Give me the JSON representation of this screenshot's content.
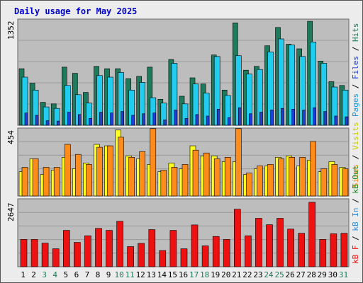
{
  "title": "Daily usage for May 2025",
  "colors": {
    "background": "#ececec",
    "panel": "#bdbdbd",
    "title": "#0000cc",
    "hits": "#1f7a5c",
    "files": "#22ccee",
    "pages": "#1e3fd9",
    "visits": "#ffff22",
    "sites": "#ff8c1a",
    "kbin": "#2f8fd8",
    "kbout": "#1c8a1c",
    "kbf": "#ee1111",
    "weekend_day": "#1f7a5c",
    "weekday_day": "#000000"
  },
  "right_labels": {
    "top": [
      {
        "text": "Pages",
        "color": "#1e9ad9"
      },
      {
        "text": "Files",
        "color": "#1e3fd9"
      },
      {
        "text": "Hits",
        "color": "#1f7a5c"
      }
    ],
    "middle": [
      {
        "text": "Sites",
        "color": "#ff8c1a"
      },
      {
        "text": "Visits",
        "color": "#cccc00"
      }
    ],
    "bottom": [
      {
        "text": "kB F",
        "color": "#ee1111"
      },
      {
        "text": "kB In",
        "color": "#2f8fd8"
      },
      {
        "text": "kB Out",
        "color": "#1c8a1c"
      }
    ]
  },
  "chart_data": [
    {
      "type": "bar",
      "panel": "hits-files-pages",
      "ymax_label": "1352",
      "ylim": [
        0,
        1352
      ],
      "categories": [
        "1",
        "2",
        "3",
        "4",
        "5",
        "6",
        "7",
        "8",
        "9",
        "10",
        "11",
        "12",
        "13",
        "14",
        "15",
        "16",
        "17",
        "18",
        "19",
        "20",
        "21",
        "22",
        "23",
        "24",
        "25",
        "26",
        "27",
        "28",
        "29",
        "30",
        "31"
      ],
      "weekend_days": [
        "3",
        "4",
        "10",
        "11",
        "17",
        "18",
        "24",
        "25",
        "31"
      ],
      "series": [
        {
          "name": "Hits",
          "color": "#1f7a5c",
          "values": [
            740,
            550,
            300,
            280,
            760,
            680,
            430,
            770,
            740,
            740,
            610,
            640,
            760,
            340,
            860,
            380,
            620,
            540,
            920,
            460,
            1340,
            720,
            770,
            1040,
            1280,
            1060,
            1000,
            1360,
            840,
            570,
            520
          ]
        },
        {
          "name": "Files",
          "color": "#22ccee",
          "values": [
            630,
            460,
            240,
            220,
            520,
            400,
            290,
            650,
            630,
            690,
            460,
            560,
            360,
            290,
            810,
            280,
            540,
            420,
            900,
            390,
            910,
            670,
            730,
            960,
            1130,
            1050,
            900,
            1090,
            810,
            500,
            460
          ]
        },
        {
          "name": "Pages",
          "color": "#1e3fd9",
          "values": [
            160,
            130,
            60,
            55,
            170,
            140,
            90,
            170,
            160,
            180,
            130,
            150,
            160,
            70,
            200,
            90,
            140,
            120,
            210,
            100,
            230,
            150,
            170,
            200,
            220,
            210,
            200,
            230,
            180,
            120,
            110
          ]
        }
      ]
    },
    {
      "type": "bar",
      "panel": "visits-sites",
      "ymax_label": "454",
      "ylim": [
        0,
        454
      ],
      "categories": [
        "1",
        "2",
        "3",
        "4",
        "5",
        "6",
        "7",
        "8",
        "9",
        "10",
        "11",
        "12",
        "13",
        "14",
        "15",
        "16",
        "17",
        "18",
        "19",
        "20",
        "21",
        "22",
        "23",
        "24",
        "25",
        "26",
        "27",
        "28",
        "29",
        "30",
        "31"
      ],
      "series": [
        {
          "name": "Visits",
          "color": "#ffff22",
          "values": [
            170,
            260,
            150,
            180,
            270,
            190,
            230,
            360,
            350,
            460,
            280,
            260,
            220,
            170,
            230,
            190,
            350,
            280,
            280,
            240,
            240,
            150,
            190,
            210,
            270,
            280,
            210,
            250,
            170,
            240,
            200
          ]
        },
        {
          "name": "Sites",
          "color": "#ff8c1a",
          "values": [
            200,
            260,
            200,
            200,
            360,
            290,
            220,
            340,
            350,
            410,
            270,
            310,
            470,
            180,
            200,
            220,
            320,
            300,
            260,
            270,
            470,
            160,
            210,
            220,
            260,
            270,
            270,
            380,
            190,
            220,
            190
          ]
        }
      ]
    },
    {
      "type": "bar",
      "panel": "kbytes",
      "ymax_label": "2647",
      "ylim": [
        0,
        2647
      ],
      "categories": [
        "1",
        "2",
        "3",
        "4",
        "5",
        "6",
        "7",
        "8",
        "9",
        "10",
        "11",
        "12",
        "13",
        "14",
        "15",
        "16",
        "17",
        "18",
        "19",
        "20",
        "21",
        "22",
        "23",
        "24",
        "25",
        "26",
        "27",
        "28",
        "29",
        "30",
        "31"
      ],
      "series": [
        {
          "name": "kB F",
          "color": "#ee1111",
          "values": [
            1110,
            1110,
            960,
            730,
            1480,
            990,
            1260,
            1560,
            1480,
            1850,
            820,
            950,
            1510,
            660,
            1480,
            730,
            1700,
            850,
            1230,
            1110,
            2340,
            1260,
            1970,
            1710,
            1970,
            1530,
            1360,
            2620,
            1110,
            1340,
            1360
          ]
        }
      ]
    }
  ]
}
